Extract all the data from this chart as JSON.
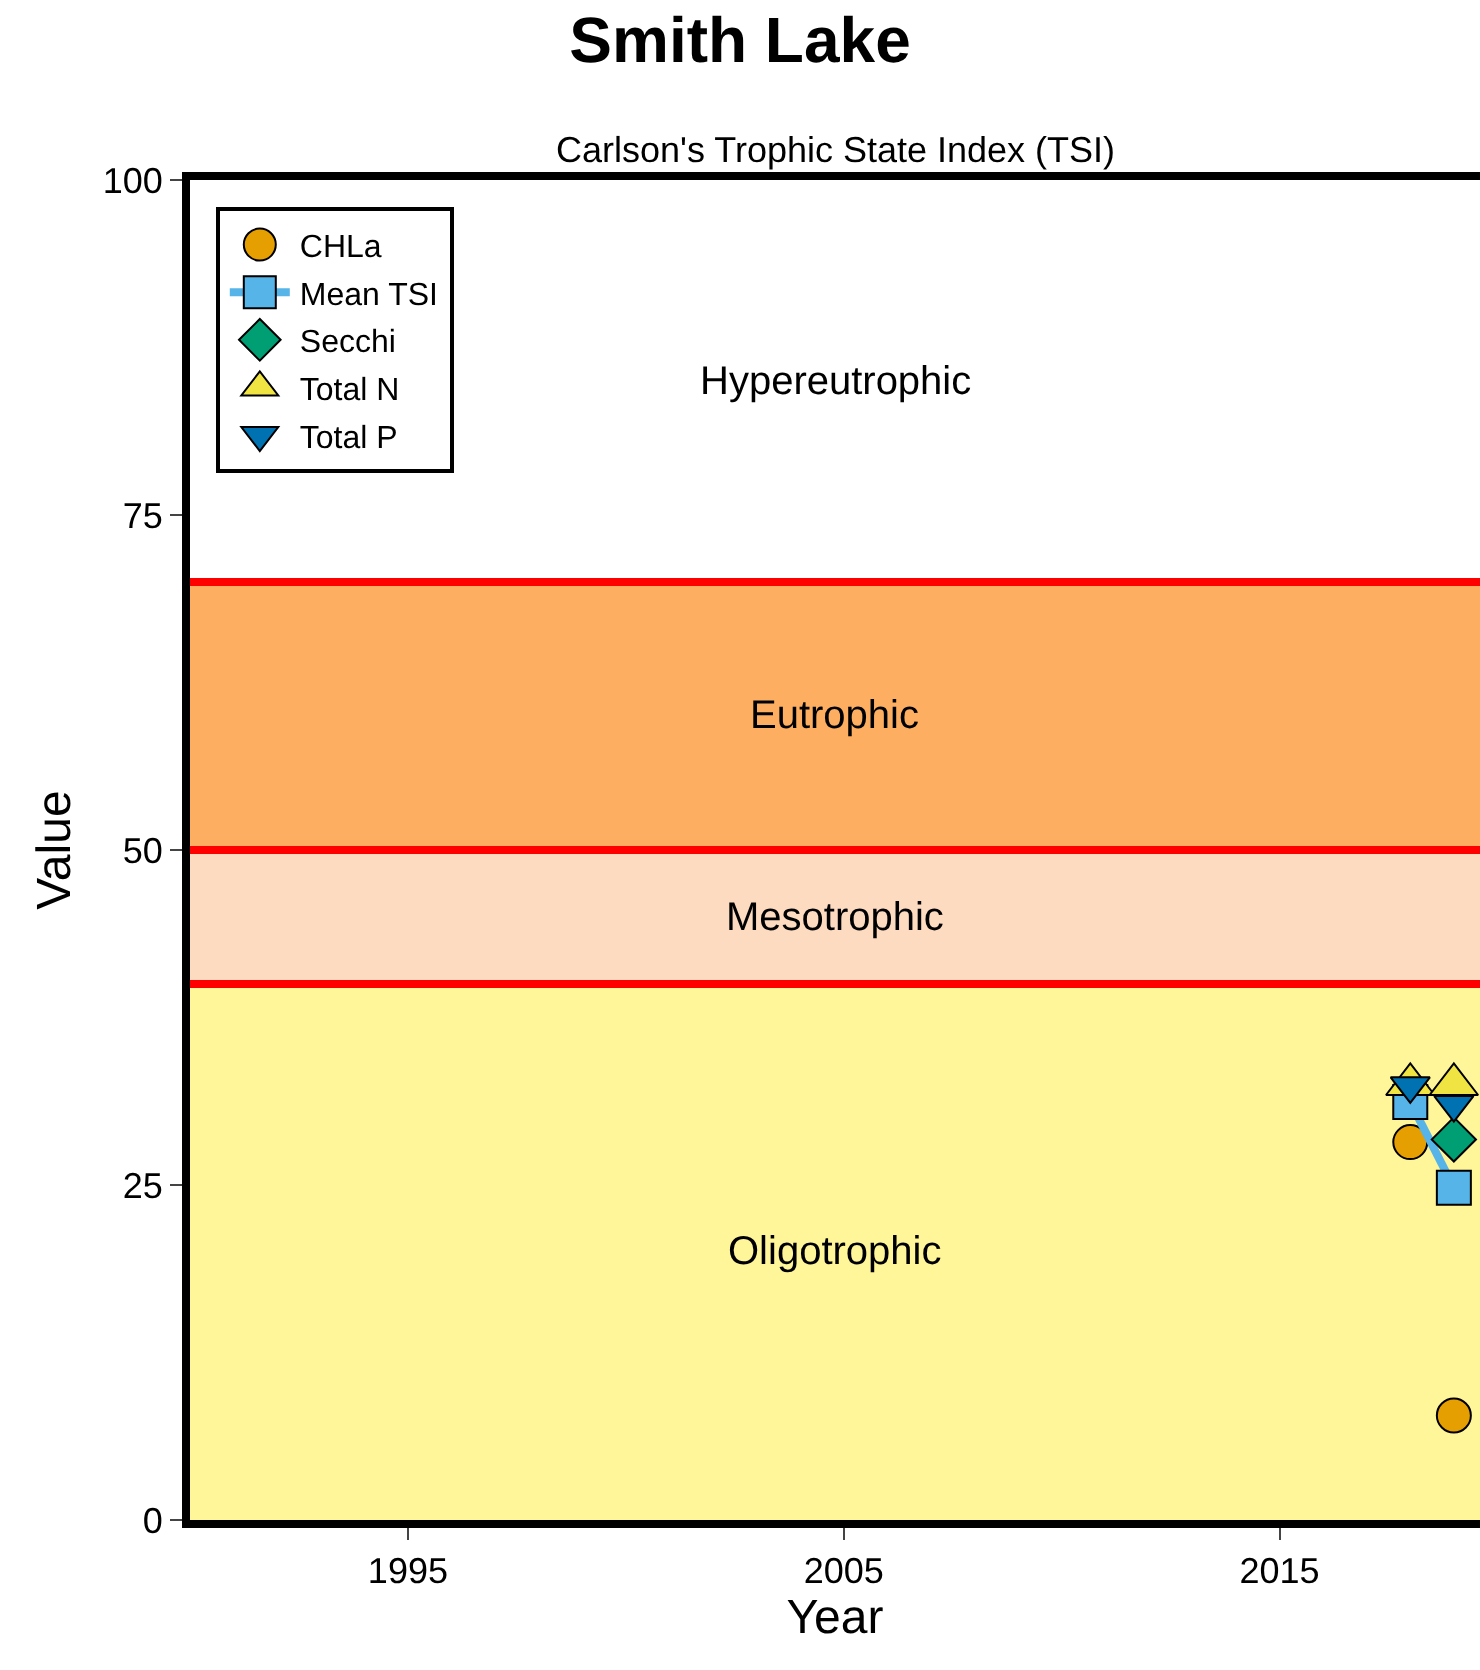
{
  "chart_data": {
    "type": "scatter",
    "title": "Smith Lake",
    "subtitle": "Carlson's Trophic State Index (TSI)",
    "xlabel": "Year",
    "ylabel": "Value",
    "x": [
      2018,
      2019
    ],
    "series": [
      {
        "name": "CHLa",
        "color": "#e69f00",
        "marker": "circle",
        "values": [
          28.2,
          7.8
        ]
      },
      {
        "name": "Mean TSI",
        "type": "line",
        "color": "#56b4e9",
        "marker": "square",
        "values": [
          31.2,
          24.8
        ]
      },
      {
        "name": "Secchi",
        "color": "#009e73",
        "marker": "diamond",
        "values": [
          null,
          28.4
        ]
      },
      {
        "name": "Total N",
        "color": "#f0e442",
        "marker": "triangle",
        "values": [
          32.5,
          32.5
        ]
      },
      {
        "name": "Total P",
        "color": "#0072b2",
        "marker": "triangle-down",
        "values": [
          32.4,
          31.0
        ]
      }
    ],
    "xlim": [
      1990,
      2019.6
    ],
    "xticks": [
      1995,
      2005,
      2015
    ],
    "ylim": [
      0,
      100
    ],
    "yticks": [
      0,
      25,
      50,
      75,
      100
    ],
    "bands": [
      {
        "axis": "y",
        "from": 0,
        "to": 40,
        "label": "Oligotrophic",
        "color": "#fff599"
      },
      {
        "axis": "y",
        "from": 40,
        "to": 50,
        "label": "Mesotrophic",
        "color": "#fddbc0"
      },
      {
        "axis": "y",
        "from": 50,
        "to": 70,
        "label": "Eutrophic",
        "color": "#fdae61"
      }
    ],
    "annotations": [
      "Hypereutrophic"
    ],
    "ref_lines": [
      {
        "axis": "y",
        "value": 40,
        "color": "#ff0000"
      },
      {
        "axis": "y",
        "value": 50,
        "color": "#ff0000"
      },
      {
        "axis": "y",
        "value": 70,
        "color": "#ff0000"
      }
    ],
    "grid": false,
    "legend": "top left"
  }
}
